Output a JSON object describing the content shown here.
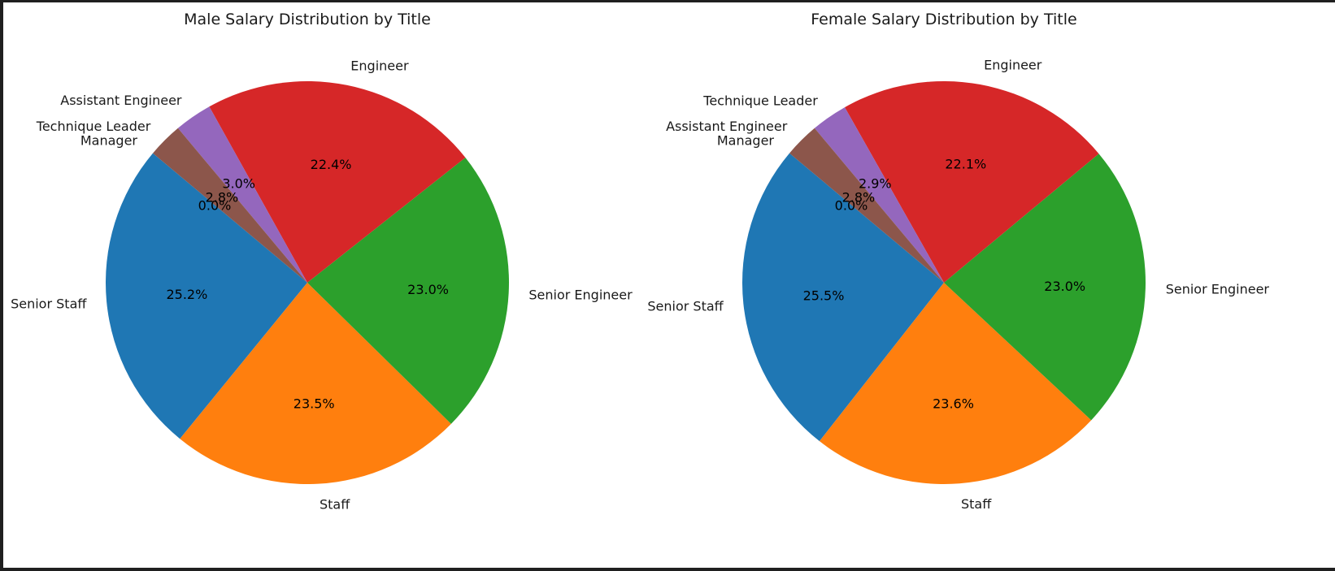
{
  "chart_data": [
    {
      "type": "pie",
      "title": "Male Salary Distribution by Title",
      "start_angle": 140,
      "slices": [
        {
          "label": "Senior Staff",
          "value": 25.2,
          "display": "25.2%",
          "color": "#1f77b4"
        },
        {
          "label": "Staff",
          "value": 23.5,
          "display": "23.5%",
          "color": "#ff7f0e"
        },
        {
          "label": "Senior Engineer",
          "value": 23.0,
          "display": "23.0%",
          "color": "#2ca02c"
        },
        {
          "label": "Engineer",
          "value": 22.4,
          "display": "22.4%",
          "color": "#d62728"
        },
        {
          "label": "Assistant Engineer",
          "value": 3.0,
          "display": "3.0%",
          "color": "#9467bd"
        },
        {
          "label": "Technique Leader",
          "value": 2.8,
          "display": "2.8%",
          "color": "#8c564b"
        },
        {
          "label": "Manager",
          "value": 0.0,
          "display": "0.0%",
          "color": "#e377c2"
        }
      ]
    },
    {
      "type": "pie",
      "title": "Female Salary Distribution by Title",
      "start_angle": 140,
      "slices": [
        {
          "label": "Senior Staff",
          "value": 25.5,
          "display": "25.5%",
          "color": "#1f77b4"
        },
        {
          "label": "Staff",
          "value": 23.6,
          "display": "23.6%",
          "color": "#ff7f0e"
        },
        {
          "label": "Senior Engineer",
          "value": 23.0,
          "display": "23.0%",
          "color": "#2ca02c"
        },
        {
          "label": "Engineer",
          "value": 22.1,
          "display": "22.1%",
          "color": "#d62728"
        },
        {
          "label": "Technique Leader",
          "value": 2.9,
          "display": "2.9%",
          "color": "#9467bd"
        },
        {
          "label": "Assistant Engineer",
          "value": 2.8,
          "display": "2.8%",
          "color": "#8c564b"
        },
        {
          "label": "Manager",
          "value": 0.0,
          "display": "0.0%",
          "color": "#e377c2"
        }
      ]
    }
  ]
}
